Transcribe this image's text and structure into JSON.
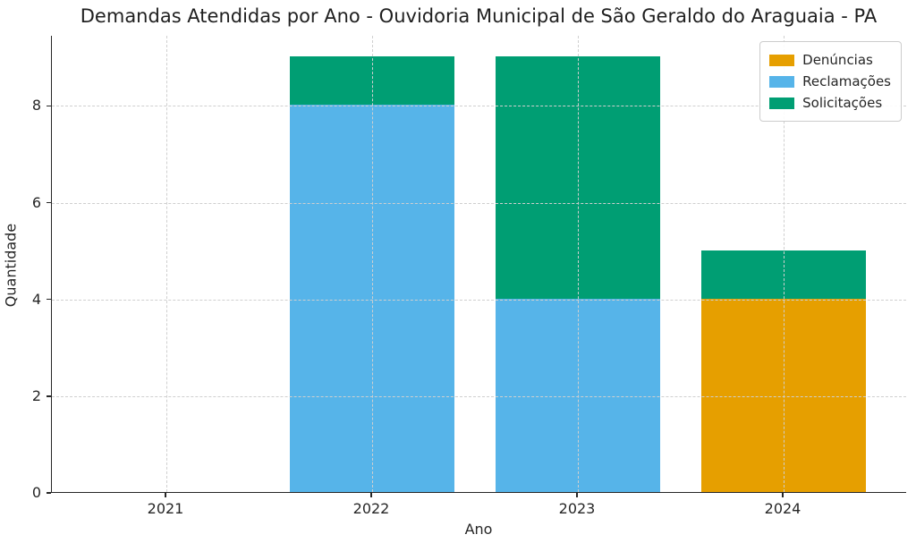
{
  "chart_data": {
    "type": "bar",
    "stacked": true,
    "title": "Demandas Atendidas por Ano - Ouvidoria Municipal de São Geraldo do Araguaia - PA",
    "xlabel": "Ano",
    "ylabel": "Quantidade",
    "categories": [
      "2021",
      "2022",
      "2023",
      "2024"
    ],
    "series": [
      {
        "name": "Denúncias",
        "color": "#E69F00",
        "values": [
          0,
          0,
          0,
          4
        ]
      },
      {
        "name": "Reclamações",
        "color": "#56B4E9",
        "values": [
          0,
          8,
          4,
          0
        ]
      },
      {
        "name": "Solicitações",
        "color": "#009E73",
        "values": [
          0,
          1,
          5,
          1
        ]
      }
    ],
    "totals_by_year": [
      0,
      9,
      9,
      5
    ],
    "yticks": [
      0,
      2,
      4,
      6,
      8
    ],
    "ylim": [
      0,
      9.45
    ],
    "grid": true,
    "grid_style": "dashed",
    "legend_position": "upper right",
    "colors": {
      "text": "#262626",
      "spine": "#262626",
      "grid": "#cfcfcf",
      "background": "#ffffff"
    }
  }
}
